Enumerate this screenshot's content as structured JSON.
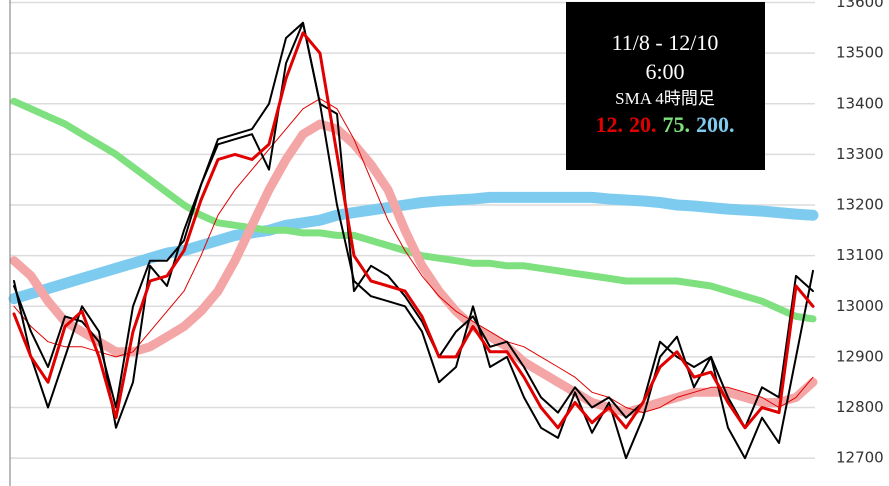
{
  "chart_data": {
    "type": "line",
    "title": "11/8 - 12/10",
    "subtitle": "6:00",
    "legend_title": "SMA 4時間足",
    "ylim": [
      12645,
      13605
    ],
    "yticks": [
      12700,
      12800,
      12900,
      13000,
      13100,
      13200,
      13300,
      13400,
      13500,
      13600
    ],
    "grid": true,
    "series": [
      {
        "name": "200.",
        "color": "#7ecbf0",
        "width": 11,
        "values": [
          13015,
          13025,
          13035,
          13045,
          13055,
          13065,
          13075,
          13085,
          13095,
          13105,
          13110,
          13120,
          13130,
          13140,
          13145,
          13150,
          13160,
          13165,
          13170,
          13180,
          13185,
          13190,
          13195,
          13200,
          13205,
          13208,
          13210,
          13212,
          13215,
          13215,
          13215,
          13215,
          13215,
          13215,
          13215,
          13212,
          13210,
          13208,
          13205,
          13200,
          13198,
          13195,
          13192,
          13190,
          13188,
          13185,
          13182,
          13180
        ]
      },
      {
        "name": "75.",
        "color": "#7ee07e",
        "width": 7,
        "values": [
          13405,
          13390,
          13375,
          13360,
          13340,
          13320,
          13300,
          13275,
          13250,
          13225,
          13200,
          13180,
          13165,
          13160,
          13155,
          13150,
          13150,
          13145,
          13145,
          13140,
          13140,
          13130,
          13120,
          13110,
          13100,
          13095,
          13090,
          13085,
          13085,
          13080,
          13080,
          13075,
          13070,
          13065,
          13060,
          13055,
          13050,
          13050,
          13050,
          13050,
          13045,
          13040,
          13030,
          13020,
          13010,
          12995,
          12980,
          12975
        ]
      },
      {
        "color": "#f4a6a6",
        "width": 9,
        "values": [
          13090,
          13060,
          13010,
          12970,
          12950,
          12930,
          12910,
          12910,
          12920,
          12940,
          12960,
          12990,
          13030,
          13090,
          13160,
          13230,
          13290,
          13340,
          13360,
          13350,
          13320,
          13280,
          13230,
          13150,
          13080,
          13030,
          12990,
          12960,
          12940,
          12920,
          12890,
          12870,
          12850,
          12830,
          12810,
          12800,
          12790,
          12800,
          12810,
          12820,
          12830,
          12830,
          12830,
          12820,
          12810,
          12810,
          12820,
          12850
        ]
      },
      {
        "name": "20.",
        "color": "#e00000",
        "width": 1,
        "values": [
          13000,
          12960,
          12930,
          12920,
          12920,
          12910,
          12900,
          12910,
          12950,
          12990,
          13030,
          13100,
          13180,
          13230,
          13270,
          13310,
          13350,
          13390,
          13410,
          13390,
          13330,
          13250,
          13170,
          13110,
          13060,
          13020,
          12990,
          12970,
          12950,
          12930,
          12920,
          12900,
          12880,
          12860,
          12830,
          12820,
          12800,
          12790,
          12800,
          12820,
          12830,
          12840,
          12840,
          12830,
          12820,
          12800,
          12820,
          12860
        ]
      },
      {
        "color": "#000000",
        "width": 2,
        "values": [
          13040,
          12950,
          12880,
          12980,
          12970,
          12930,
          12800,
          13000,
          13090,
          13090,
          13130,
          13240,
          13330,
          13340,
          13350,
          13400,
          13530,
          13560,
          13400,
          13380,
          13030,
          13080,
          13060,
          13020,
          12970,
          12900,
          12950,
          12980,
          12920,
          12930,
          12880,
          12820,
          12790,
          12840,
          12800,
          12820,
          12780,
          12810,
          12930,
          12900,
          12880,
          12900,
          12820,
          12760,
          12840,
          12820,
          13060,
          13030
        ]
      },
      {
        "color": "#000000",
        "width": 2,
        "values": [
          13050,
          12900,
          12800,
          12900,
          13000,
          12950,
          12760,
          12850,
          13080,
          13040,
          13150,
          13240,
          13320,
          13330,
          13340,
          13270,
          13480,
          13560,
          13400,
          13200,
          13050,
          13020,
          13010,
          13000,
          12950,
          12850,
          12880,
          13000,
          12880,
          12900,
          12820,
          12760,
          12740,
          12830,
          12750,
          12810,
          12700,
          12780,
          12900,
          12940,
          12840,
          12900,
          12760,
          12700,
          12780,
          12730,
          12900,
          13070
        ]
      },
      {
        "name": "12.",
        "color": "#e00000",
        "width": 3,
        "values": [
          12985,
          12900,
          12850,
          12960,
          12990,
          12900,
          12780,
          12950,
          13050,
          13060,
          13110,
          13210,
          13290,
          13300,
          13290,
          13320,
          13450,
          13540,
          13500,
          13300,
          13100,
          13050,
          13040,
          13030,
          12980,
          12900,
          12900,
          12960,
          12910,
          12910,
          12860,
          12800,
          12760,
          12810,
          12770,
          12800,
          12760,
          12810,
          12880,
          12910,
          12860,
          12870,
          12810,
          12760,
          12800,
          12790,
          13040,
          13000
        ]
      }
    ],
    "legend_order": [
      6,
      3,
      1,
      0
    ]
  }
}
